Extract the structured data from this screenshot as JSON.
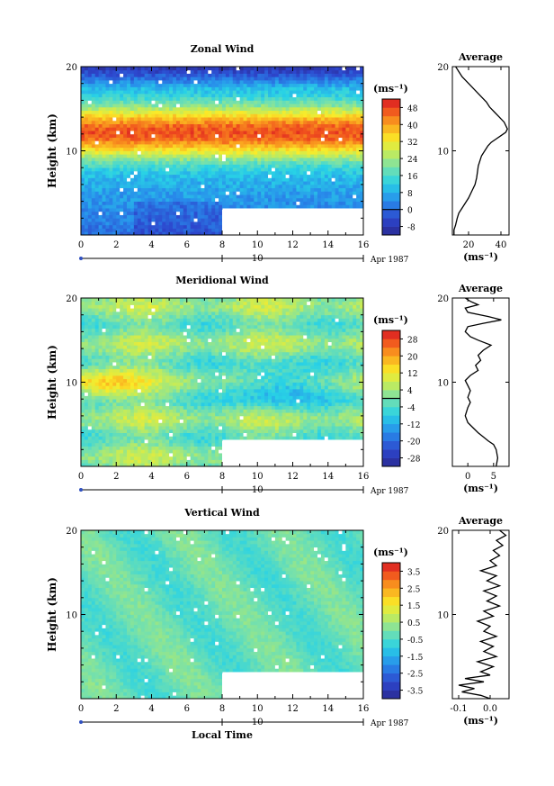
{
  "chart_data": [
    {
      "type": "heatmap",
      "title": "Zonal Wind",
      "ylabel": "Height (km)",
      "xlim": [
        0,
        16
      ],
      "ylim": [
        0,
        20
      ],
      "x_ticks": [
        "0",
        "2",
        "4",
        "6",
        "8",
        "10",
        "12",
        "14",
        "16"
      ],
      "y_ticks": [
        "10",
        "20"
      ],
      "date_axis": {
        "day_label": "10",
        "month_label": "Apr 1987"
      },
      "colorbar": {
        "unit": "(ms⁻¹)",
        "ticks": [
          "48",
          "40",
          "32",
          "24",
          "16",
          "8",
          "0",
          "-8"
        ],
        "range": [
          -12,
          52
        ],
        "zero_line": 0
      },
      "missing_block": {
        "x_start": 8,
        "x_end": 16,
        "y_start": 0,
        "y_end": 3
      },
      "profile": {
        "title": "Average",
        "xlabel": "(ms⁻¹)",
        "x_ticks": [
          "20",
          "40"
        ],
        "xlim": [
          10,
          45
        ],
        "y_ticks": [
          "10",
          "20"
        ],
        "points": [
          [
            11,
            0
          ],
          [
            11,
            0.6
          ],
          [
            12,
            1.2
          ],
          [
            13,
            2.0
          ],
          [
            14,
            2.6
          ],
          [
            16,
            3.2
          ],
          [
            18,
            3.8
          ],
          [
            20,
            4.4
          ],
          [
            22,
            5.2
          ],
          [
            24,
            6.0
          ],
          [
            25,
            6.8
          ],
          [
            25.5,
            7.5
          ],
          [
            26,
            8.2
          ],
          [
            27,
            8.8
          ],
          [
            28,
            9.4
          ],
          [
            30,
            10.0
          ],
          [
            32,
            10.6
          ],
          [
            34,
            11.0
          ],
          [
            37,
            11.4
          ],
          [
            40,
            11.8
          ],
          [
            43,
            12.2
          ],
          [
            44,
            12.6
          ],
          [
            42,
            13.4
          ],
          [
            39,
            14.0
          ],
          [
            36,
            14.6
          ],
          [
            33,
            15.2
          ],
          [
            31,
            15.8
          ],
          [
            28,
            16.4
          ],
          [
            25,
            17.0
          ],
          [
            22,
            17.6
          ],
          [
            19,
            18.2
          ],
          [
            16,
            18.8
          ],
          [
            14,
            19.4
          ],
          [
            12,
            20.0
          ]
        ]
      }
    },
    {
      "type": "heatmap",
      "title": "Meridional Wind",
      "ylabel": "Height (km)",
      "xlim": [
        0,
        16
      ],
      "ylim": [
        0,
        20
      ],
      "x_ticks": [
        "0",
        "2",
        "4",
        "6",
        "8",
        "10",
        "12",
        "14",
        "16"
      ],
      "y_ticks": [
        "10",
        "20"
      ],
      "date_axis": {
        "day_label": "10",
        "month_label": "Apr 1987"
      },
      "colorbar": {
        "unit": "(ms⁻¹)",
        "ticks": [
          "28",
          "20",
          "12",
          "4",
          "-4",
          "-12",
          "-20",
          "-28"
        ],
        "range": [
          -32,
          32
        ],
        "zero_line": 0
      },
      "missing_block": {
        "x_start": 8,
        "x_end": 16,
        "y_start": 0,
        "y_end": 3
      },
      "profile": {
        "title": "Average",
        "xlabel": "(ms⁻¹)",
        "x_ticks": [
          "0",
          "5"
        ],
        "xlim": [
          -3,
          8
        ],
        "y_ticks": [
          "10",
          "20"
        ],
        "points": [
          [
            5.5,
            0
          ],
          [
            5.8,
            1
          ],
          [
            5.5,
            2
          ],
          [
            5,
            2.6
          ],
          [
            4,
            3.0
          ],
          [
            3,
            3.5
          ],
          [
            2,
            4.0
          ],
          [
            1,
            4.6
          ],
          [
            0,
            5.2
          ],
          [
            -0.5,
            6.0
          ],
          [
            0,
            7.0
          ],
          [
            0.5,
            7.6
          ],
          [
            0,
            8.2
          ],
          [
            0.5,
            9.0
          ],
          [
            0,
            9.6
          ],
          [
            -0.5,
            10.2
          ],
          [
            0.5,
            10.8
          ],
          [
            2,
            11.4
          ],
          [
            1.5,
            12.0
          ],
          [
            2.5,
            12.6
          ],
          [
            2,
            13.2
          ],
          [
            3,
            13.8
          ],
          [
            4.5,
            14.4
          ],
          [
            2,
            15.0
          ],
          [
            0.5,
            15.4
          ],
          [
            -0.5,
            16.0
          ],
          [
            0,
            16.6
          ],
          [
            3,
            17.0
          ],
          [
            6.5,
            17.4
          ],
          [
            4,
            17.8
          ],
          [
            0,
            18.3
          ],
          [
            -0.5,
            18.8
          ],
          [
            2,
            19.2
          ],
          [
            0.5,
            19.6
          ],
          [
            -0.5,
            20.0
          ]
        ]
      }
    },
    {
      "type": "heatmap",
      "title": "Vertical Wind",
      "xlabel": "Local Time",
      "ylabel": "Height (km)",
      "xlim": [
        0,
        16
      ],
      "ylim": [
        0,
        20
      ],
      "x_ticks": [
        "0",
        "2",
        "4",
        "6",
        "8",
        "10",
        "12",
        "14",
        "16"
      ],
      "y_ticks": [
        "10",
        "20"
      ],
      "date_axis": {
        "day_label": "10",
        "month_label": "Apr 1987"
      },
      "colorbar": {
        "unit": "(ms⁻¹)",
        "ticks": [
          "3.5",
          "2.5",
          "1.5",
          "0.5",
          "-0.5",
          "-1.5",
          "-2.5",
          "-3.5"
        ],
        "range": [
          -4,
          4
        ],
        "zero_line": null
      },
      "missing_block": {
        "x_start": 8,
        "x_end": 16,
        "y_start": 0,
        "y_end": 3
      },
      "profile": {
        "title": "Average",
        "xlabel": "(ms⁻¹)",
        "x_ticks": [
          "-0.1",
          "0.0"
        ],
        "xlim": [
          -0.12,
          0.06
        ],
        "y_ticks": [
          "10",
          "20"
        ],
        "points": [
          [
            0.0,
            0
          ],
          [
            -0.03,
            0.4
          ],
          [
            -0.09,
            0.8
          ],
          [
            -0.05,
            1.2
          ],
          [
            -0.1,
            1.6
          ],
          [
            -0.02,
            2.0
          ],
          [
            -0.08,
            2.4
          ],
          [
            0.0,
            2.8
          ],
          [
            -0.03,
            3.2
          ],
          [
            0.01,
            3.8
          ],
          [
            -0.04,
            4.4
          ],
          [
            0.02,
            5.0
          ],
          [
            -0.02,
            5.6
          ],
          [
            0.01,
            6.2
          ],
          [
            -0.03,
            6.8
          ],
          [
            0.02,
            7.4
          ],
          [
            -0.02,
            8.0
          ],
          [
            0.0,
            8.6
          ],
          [
            -0.04,
            9.2
          ],
          [
            0.01,
            9.8
          ],
          [
            -0.02,
            10.4
          ],
          [
            0.03,
            11.0
          ],
          [
            -0.01,
            11.6
          ],
          [
            0.02,
            12.2
          ],
          [
            -0.02,
            12.8
          ],
          [
            0.03,
            13.4
          ],
          [
            -0.01,
            14.0
          ],
          [
            0.02,
            14.6
          ],
          [
            -0.03,
            15.2
          ],
          [
            0.02,
            15.8
          ],
          [
            0.0,
            16.4
          ],
          [
            0.03,
            17.0
          ],
          [
            0.01,
            17.6
          ],
          [
            0.04,
            18.2
          ],
          [
            0.02,
            18.8
          ],
          [
            0.05,
            19.4
          ],
          [
            0.03,
            20.0
          ]
        ]
      }
    }
  ]
}
